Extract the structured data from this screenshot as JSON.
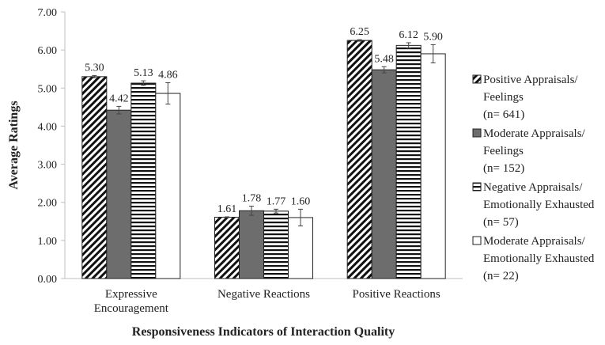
{
  "chart_data": {
    "type": "bar",
    "xlabel": "Responsiveness Indicators of Interaction Quality",
    "ylabel": "Average Ratings",
    "ylim": [
      0,
      7
    ],
    "yticks": [
      "0.00",
      "1.00",
      "2.00",
      "3.00",
      "4.00",
      "5.00",
      "6.00",
      "7.00"
    ],
    "grid": false,
    "legend_position": "right",
    "categories": [
      [
        "Expressive",
        "Encouragement"
      ],
      [
        "Negative Reactions"
      ],
      [
        "Positive Reactions"
      ]
    ],
    "series": [
      {
        "name_lines": [
          "Positive Appraisals/",
          "Feelings",
          "(n= 641)"
        ],
        "fill": "hatch-diagonal",
        "values": [
          5.3,
          1.61,
          6.25
        ],
        "labels": [
          "5.30",
          "1.61",
          "6.25"
        ],
        "errors": [
          0.03,
          0.01,
          0.02
        ]
      },
      {
        "name_lines": [
          "Moderate Appraisals/",
          "Feelings",
          "(n= 152)"
        ],
        "fill": "solid-gray",
        "values": [
          4.42,
          1.78,
          5.48
        ],
        "labels": [
          "4.42",
          "1.78",
          "5.48"
        ],
        "errors": [
          0.1,
          0.12,
          0.08
        ]
      },
      {
        "name_lines": [
          "Negative Appraisals/",
          "Emotionally Exhausted",
          "(n= 57)"
        ],
        "fill": "hatch-horizontal",
        "values": [
          5.13,
          1.77,
          6.12
        ],
        "labels": [
          "5.13",
          "1.77",
          "6.12"
        ],
        "errors": [
          0.06,
          0.05,
          0.07
        ]
      },
      {
        "name_lines": [
          "Moderate Appraisals/",
          "Emotionally Exhausted",
          "(n= 22)"
        ],
        "fill": "white",
        "values": [
          4.86,
          1.6,
          5.9
        ],
        "labels": [
          "4.86",
          "1.60",
          "5.90"
        ],
        "errors": [
          0.28,
          0.22,
          0.24
        ]
      }
    ],
    "colors": {
      "bar_stroke": "#222222",
      "solid_gray": "#6d6d6d",
      "axis": "#bfbfbf",
      "error_bar": "#444444"
    }
  }
}
